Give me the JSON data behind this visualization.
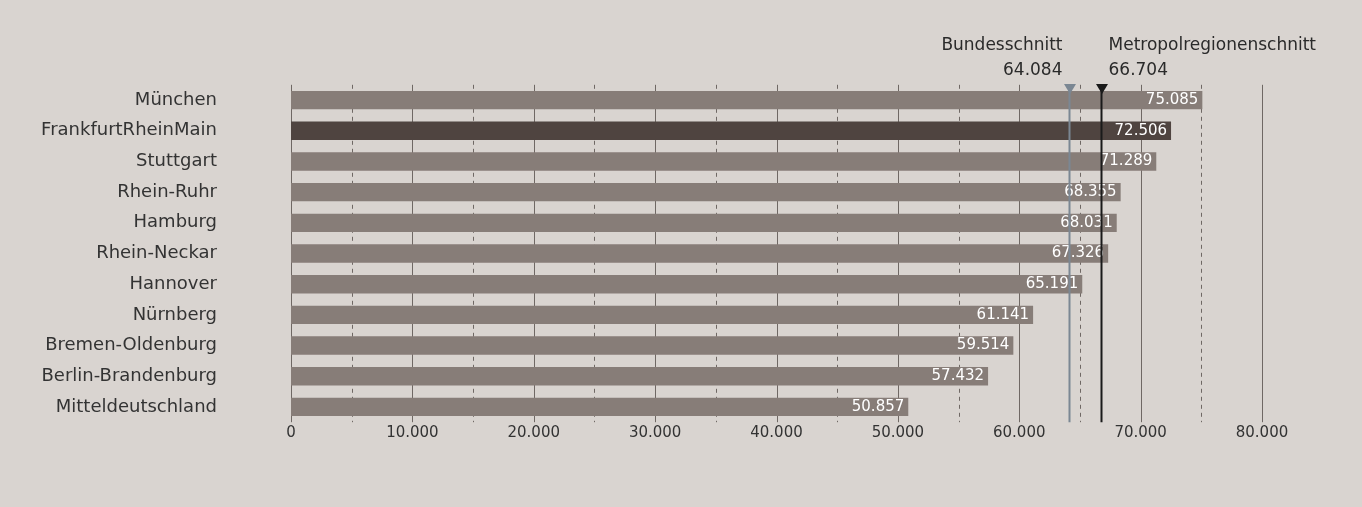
{
  "chart_data": {
    "type": "bar",
    "orientation": "horizontal",
    "categories": [
      "München",
      "FrankfurtRheinMain",
      "Stuttgart",
      "Rhein-Ruhr",
      "Hamburg",
      "Rhein-Neckar",
      "Hannover",
      "Nürnberg",
      "Bremen-Oldenburg",
      "Berlin-Brandenburg",
      "Mitteldeutschland"
    ],
    "values": [
      75085,
      72506,
      71289,
      68355,
      68031,
      67326,
      65191,
      61141,
      59514,
      57432,
      50857
    ],
    "colors": [
      "#877d78",
      "#4f4440",
      "#877d78",
      "#877d78",
      "#877d78",
      "#877d78",
      "#877d78",
      "#877d78",
      "#877d78",
      "#877d78",
      "#877d78"
    ],
    "xlim": [
      0,
      80000
    ],
    "xticks": [
      {
        "value": 0,
        "label": "0"
      },
      {
        "value": 5000,
        "label": null
      },
      {
        "value": 10000,
        "label": "10.000"
      },
      {
        "value": 15000,
        "label": null
      },
      {
        "value": 20000,
        "label": "20.000"
      },
      {
        "value": 25000,
        "label": null
      },
      {
        "value": 30000,
        "label": "30.000"
      },
      {
        "value": 35000,
        "label": null
      },
      {
        "value": 40000,
        "label": "40.000"
      },
      {
        "value": 45000,
        "label": null
      },
      {
        "value": 50000,
        "label": "50.000"
      },
      {
        "value": 55000,
        "label": null
      },
      {
        "value": 60000,
        "label": "60.000"
      },
      {
        "value": 65000,
        "label": null
      },
      {
        "value": 70000,
        "label": "70.000"
      },
      {
        "value": 75000,
        "label": null
      },
      {
        "value": 80000,
        "label": "80.000"
      }
    ],
    "grid": "x",
    "legend": false,
    "value_labels": [
      "75.085",
      "72.506",
      "71.289",
      "68.355",
      "68.031",
      "67.326",
      "65.191",
      "61.141",
      "59.514",
      "57.432",
      "50.857"
    ],
    "ref_lines": [
      {
        "axis": "x",
        "value": 64084,
        "label": "Bundesschnitt\n64.084",
        "color": "#7b8793"
      },
      {
        "axis": "x",
        "value": 66704,
        "label": "Metropolregionenschnitt\n66.704",
        "color": "#1a1a1a"
      }
    ]
  }
}
